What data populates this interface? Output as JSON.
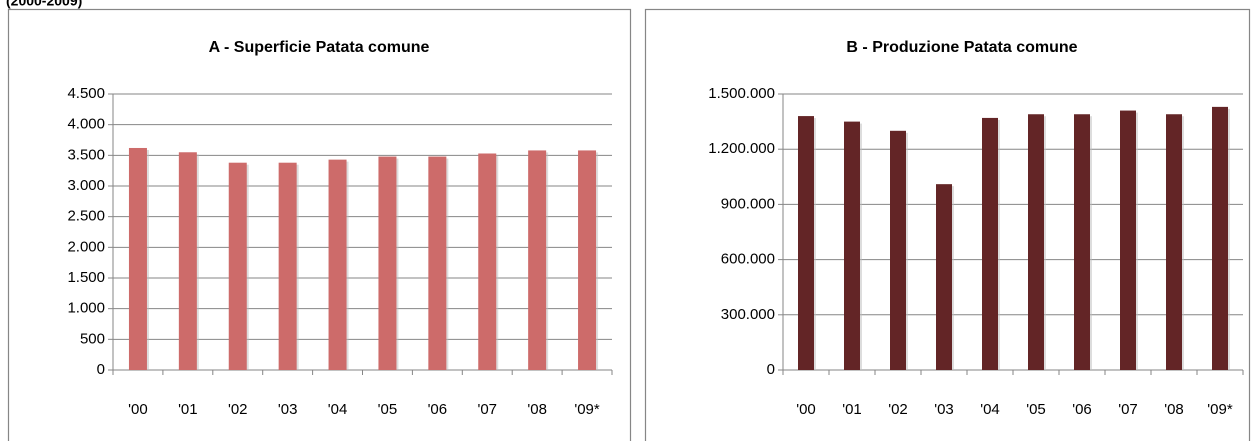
{
  "page_title": "(2000-2009)",
  "chart_data": [
    {
      "type": "bar",
      "title": "A - Superficie Patata comune",
      "categories": [
        "'00",
        "'01",
        "'02",
        "'03",
        "'04",
        "'05",
        "'06",
        "'07",
        "'08",
        "'09*"
      ],
      "values": [
        3620,
        3550,
        3380,
        3380,
        3430,
        3480,
        3480,
        3530,
        3580,
        3580
      ],
      "color": "#cd6b6a",
      "ylim": [
        0,
        4500
      ],
      "yticks": [
        0,
        500,
        {
          "value": 1000,
          "label": "1.000"
        },
        {
          "value": 1500,
          "label": "1.500"
        },
        {
          "value": 2000,
          "label": "2.000"
        },
        {
          "value": 2500,
          "label": "2.500"
        },
        {
          "value": 3000,
          "label": "3.000"
        },
        {
          "value": 3500,
          "label": "3.500"
        },
        {
          "value": 4000,
          "label": "4.000"
        },
        {
          "value": 4500,
          "label": "4.500"
        }
      ],
      "grid": true
    },
    {
      "type": "bar",
      "title": "B - Produzione Patata comune",
      "categories": [
        "'00",
        "'01",
        "'02",
        "'03",
        "'04",
        "'05",
        "'06",
        "'07",
        "'08",
        "'09*"
      ],
      "values": [
        1380000,
        1350000,
        1300000,
        1010000,
        1370000,
        1390000,
        1390000,
        1410000,
        1390000,
        1430000
      ],
      "color": "#632526",
      "ylim": [
        0,
        1500000
      ],
      "yticks": [
        0,
        {
          "value": 300000,
          "label": "300.000"
        },
        {
          "value": 600000,
          "label": "600.000"
        },
        {
          "value": 900000,
          "label": "900.000"
        },
        {
          "value": 1200000,
          "label": "1.200.000"
        },
        {
          "value": 1500000,
          "label": "1.500.000"
        }
      ],
      "grid": true
    }
  ]
}
